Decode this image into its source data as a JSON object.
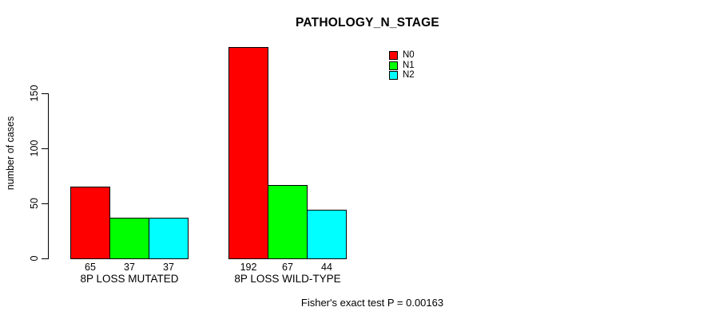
{
  "chart_data": {
    "type": "bar",
    "title": "PATHOLOGY_N_STAGE",
    "ylabel": "number of cases",
    "xlabel": "",
    "categories": [
      "8P LOSS MUTATED",
      "8P LOSS WILD-TYPE"
    ],
    "series": [
      {
        "name": "N0",
        "color": "#ff0000",
        "values": [
          65,
          192
        ]
      },
      {
        "name": "N1",
        "color": "#00ff00",
        "values": [
          37,
          67
        ]
      },
      {
        "name": "N2",
        "color": "#00ffff",
        "values": [
          37,
          44
        ]
      }
    ],
    "bar_value_labels": [
      [
        65,
        37,
        37
      ],
      [
        192,
        67,
        44
      ]
    ],
    "yticks": [
      0,
      50,
      100,
      150
    ],
    "ylim": [
      0,
      150
    ],
    "grid": false,
    "legend": {
      "position": "top-right-inside",
      "entries": [
        "N0",
        "N1",
        "N2"
      ],
      "colors": [
        "#ff0000",
        "#00ff00",
        "#00ffff"
      ]
    },
    "annotation": "Fisher's exact test P = 0.00163",
    "background_color": "#ffffff",
    "axis_color": "#000000"
  }
}
